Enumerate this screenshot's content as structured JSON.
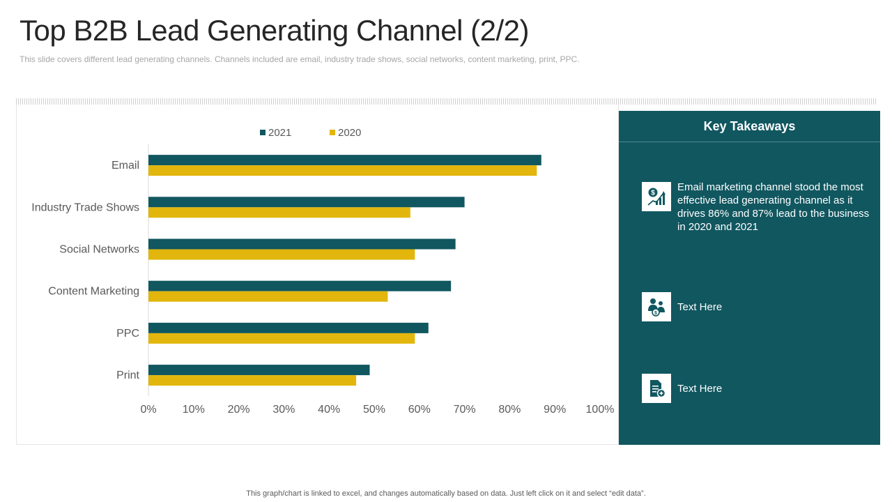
{
  "slide": {
    "title": "Top B2B Lead Generating Channel (2/2)",
    "subtitle": "This slide covers different lead generating channels. Channels included are email, industry trade shows, social networks, content marketing, print, PPC.",
    "footer": "This graph/chart is linked to excel, and changes automatically based on data. Just left click on it and select “edit data”."
  },
  "colors": {
    "dark_teal": "#115760",
    "gold": "#e2b60c",
    "panel": "#115760"
  },
  "chart_data": {
    "type": "bar",
    "orientation": "horizontal",
    "categories": [
      "Email",
      "Industry Trade Shows",
      "Social Networks",
      "Content Marketing",
      "PPC",
      "Print"
    ],
    "series": [
      {
        "name": "2021",
        "color": "#115760",
        "values": [
          87,
          70,
          68,
          67,
          62,
          49
        ]
      },
      {
        "name": "2020",
        "color": "#e2b60c",
        "values": [
          86,
          58,
          59,
          53,
          59,
          46
        ]
      }
    ],
    "xlim": [
      0,
      100
    ],
    "x_ticks": [
      "0%",
      "10%",
      "20%",
      "30%",
      "40%",
      "50%",
      "60%",
      "70%",
      "80%",
      "90%",
      "100%"
    ],
    "legend_position": "top",
    "grid": false
  },
  "takeaways": {
    "title": "Key Takeaways",
    "items": [
      {
        "icon": "money-growth-icon",
        "text": "Email marketing channel stood the most effective lead generating channel as it drives 86% and 87% lead to the business in 2020 and 2021"
      },
      {
        "icon": "business-people-icon",
        "text": "Text Here"
      },
      {
        "icon": "document-add-icon",
        "text": "Text Here"
      }
    ]
  }
}
